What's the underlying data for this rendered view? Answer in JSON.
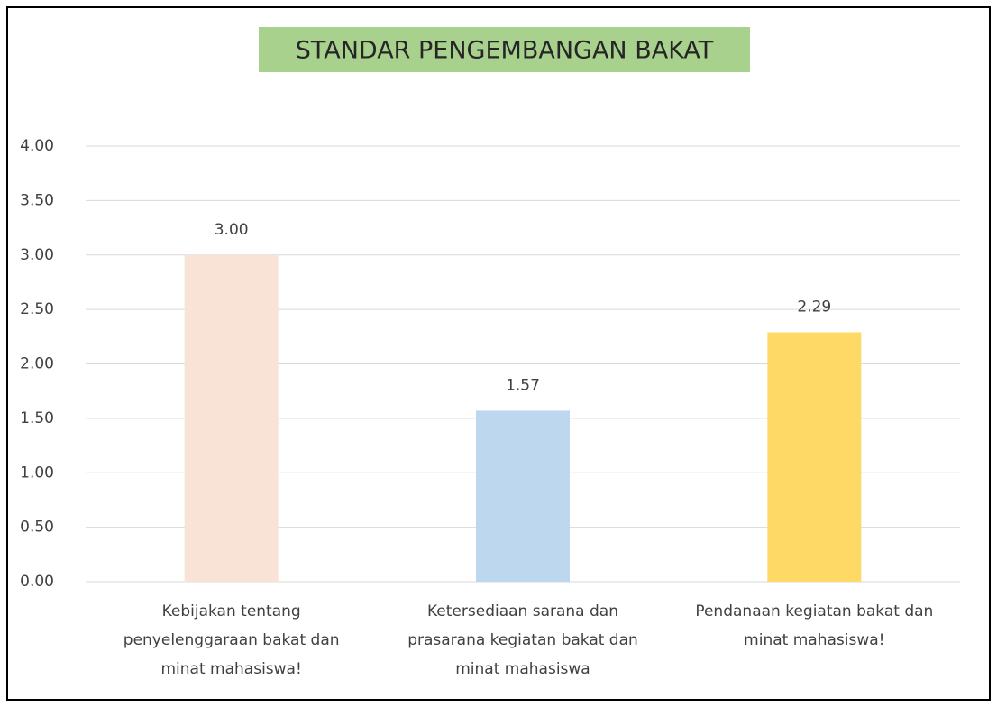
{
  "chart_data": {
    "type": "bar",
    "title": "STANDAR PENGEMBANGAN BAKAT",
    "categories": [
      "Kebijakan tentang penyelenggaraan bakat dan minat mahasiswa!",
      "Ketersediaan sarana dan prasarana kegiatan bakat dan minat mahasiswa",
      "Pendanaan kegiatan bakat dan minat mahasiswa!"
    ],
    "values": [
      3.0,
      1.57,
      2.29
    ],
    "value_labels": [
      "3.00",
      "1.57",
      "2.29"
    ],
    "colors": [
      "#f8e3d6",
      "#bdd7ee",
      "#ffd966"
    ],
    "ylim": [
      0,
      4
    ],
    "yticks": [
      {
        "value": 0,
        "label": "0.00"
      },
      {
        "value": 0.5,
        "label": "0.50"
      },
      {
        "value": 1,
        "label": "1.00"
      },
      {
        "value": 1.5,
        "label": "1.50"
      },
      {
        "value": 2,
        "label": "2.00"
      },
      {
        "value": 2.5,
        "label": "2.50"
      },
      {
        "value": 3,
        "label": "3.00"
      },
      {
        "value": 3.5,
        "label": "3.50"
      },
      {
        "value": 4,
        "label": "4.00"
      }
    ],
    "grid": true
  }
}
